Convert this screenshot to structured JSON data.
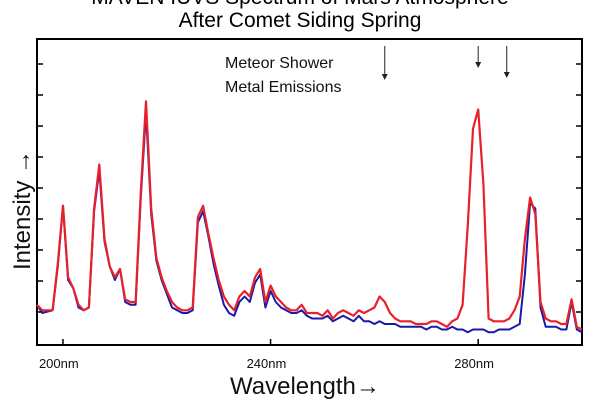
{
  "chart_data": {
    "type": "line",
    "title_line1": "MAVEN IUVS Spectrum of Mars Atmosphere",
    "title_line2": "After Comet Siding Spring",
    "xlabel": "Wavelength",
    "ylabel": "Intensity",
    "xlim": [
      195,
      300
    ],
    "ylim": [
      0,
      100
    ],
    "x_ticks": [
      {
        "value": 200,
        "label": "200nm"
      },
      {
        "value": 240,
        "label": "240nm"
      },
      {
        "value": 280,
        "label": "280nm"
      }
    ],
    "grid": false,
    "annotation": {
      "line1": "Meteor Shower",
      "line2": "Metal Emissions",
      "arrows_at": [
        262,
        280,
        285.5
      ]
    },
    "series": [
      {
        "color": "#1a1aa8",
        "x": [
          195,
          196,
          198,
          199,
          200,
          201,
          202,
          203,
          204,
          205,
          206,
          207,
          208,
          209,
          210,
          211,
          212,
          213,
          214,
          215,
          216,
          217,
          218,
          219,
          220,
          221,
          222,
          223,
          224,
          225,
          226,
          227,
          228,
          229,
          230,
          231,
          232,
          233,
          234,
          235,
          236,
          237,
          238,
          239,
          240,
          241,
          242,
          243,
          244,
          245,
          246,
          247,
          248,
          249,
          250,
          251,
          252,
          253,
          254,
          255,
          256,
          257,
          258,
          259,
          260,
          261,
          262,
          263,
          264,
          265,
          266,
          267,
          268,
          269,
          270,
          271,
          272,
          273,
          274,
          275,
          276,
          277,
          278,
          279,
          280,
          281,
          282,
          283,
          284,
          285,
          286,
          287,
          288,
          289,
          290,
          291,
          292,
          293,
          294,
          295,
          296,
          297,
          298,
          299,
          300
        ],
        "y": [
          11,
          8,
          9,
          25,
          47,
          20,
          17,
          10,
          9,
          10,
          45,
          60,
          34,
          25,
          20,
          24,
          12,
          11,
          11,
          50,
          81,
          44,
          27,
          20,
          15,
          10,
          9,
          8,
          8,
          9,
          41,
          45,
          36,
          26,
          18,
          11,
          8,
          7,
          12,
          14,
          12,
          19,
          22,
          10,
          16,
          12,
          10,
          9,
          8,
          8,
          9,
          7,
          6,
          6,
          6,
          7,
          5,
          6,
          7,
          6,
          5,
          7,
          5,
          5,
          4,
          5,
          4,
          4,
          4,
          3,
          3,
          3,
          3,
          3,
          2,
          3,
          3,
          2,
          2,
          3,
          2,
          2,
          1,
          2,
          2,
          2,
          1,
          1,
          2,
          2,
          2,
          3,
          4,
          22,
          48,
          46,
          10,
          3,
          3,
          3,
          2,
          2,
          12,
          2,
          1
        ]
      },
      {
        "color": "#e8202a",
        "x": [
          195,
          196,
          198,
          199,
          200,
          201,
          202,
          203,
          204,
          205,
          206,
          207,
          208,
          209,
          210,
          211,
          212,
          213,
          214,
          215,
          216,
          217,
          218,
          219,
          220,
          221,
          222,
          223,
          224,
          225,
          226,
          227,
          228,
          229,
          230,
          231,
          232,
          233,
          234,
          235,
          236,
          237,
          238,
          239,
          240,
          241,
          242,
          243,
          244,
          245,
          246,
          247,
          248,
          249,
          250,
          251,
          252,
          253,
          254,
          255,
          256,
          257,
          258,
          259,
          260,
          261,
          262,
          263,
          264,
          265,
          266,
          267,
          268,
          269,
          270,
          271,
          272,
          273,
          274,
          275,
          276,
          277,
          278,
          279,
          280,
          281,
          282,
          283,
          284,
          285,
          286,
          287,
          288,
          289,
          290,
          291,
          292,
          293,
          294,
          295,
          296,
          297,
          298,
          299,
          300
        ],
        "y": [
          11,
          9,
          9,
          26,
          47,
          21,
          17,
          11,
          9,
          10,
          46,
          62,
          35,
          25,
          21,
          24,
          13,
          12,
          12,
          52,
          85,
          46,
          28,
          21,
          16,
          12,
          10,
          9,
          9,
          10,
          43,
          47,
          37,
          28,
          20,
          14,
          11,
          9,
          14,
          16,
          14,
          21,
          24,
          12,
          18,
          14,
          12,
          10,
          9,
          9,
          11,
          8,
          8,
          8,
          7,
          9,
          6,
          8,
          9,
          8,
          7,
          9,
          8,
          9,
          10,
          14,
          12,
          8,
          6,
          5,
          5,
          5,
          4,
          4,
          4,
          5,
          5,
          4,
          3,
          5,
          6,
          11,
          40,
          75,
          82,
          55,
          6,
          5,
          5,
          5,
          6,
          9,
          14,
          35,
          50,
          44,
          12,
          6,
          5,
          5,
          4,
          4,
          13,
          3,
          2
        ]
      }
    ]
  }
}
